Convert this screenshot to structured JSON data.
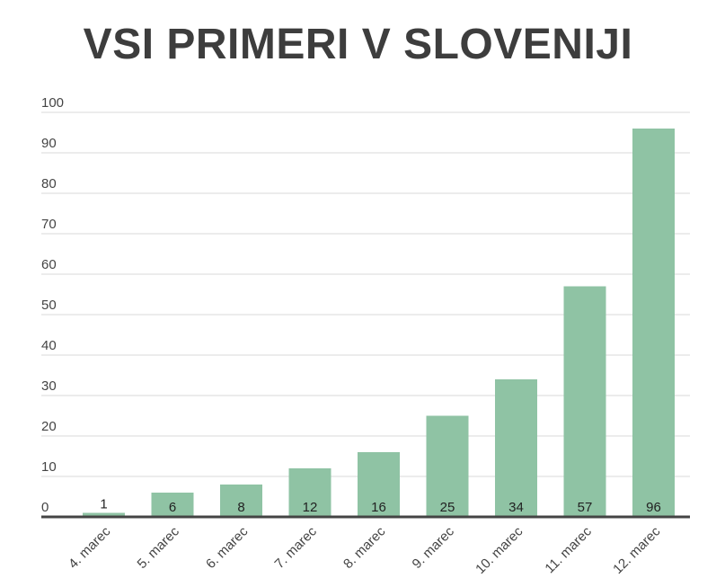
{
  "chart_data": {
    "type": "bar",
    "title": "VSI PRIMERI V SLOVENIJI",
    "categories": [
      "4. marec",
      "5. marec",
      "6. marec",
      "7. marec",
      "8. marec",
      "9. marec",
      "10. marec",
      "11. marec",
      "12. marec"
    ],
    "values": [
      1,
      6,
      8,
      12,
      16,
      25,
      34,
      57,
      96
    ],
    "xlabel": "",
    "ylabel": "",
    "ylim": [
      0,
      100
    ],
    "yticks": [
      0,
      10,
      20,
      30,
      40,
      50,
      60,
      70,
      80,
      90,
      100
    ],
    "grid": true,
    "data_labels": true,
    "colors": {
      "bar": "#8fc3a4",
      "grid": "#d9d9d9",
      "axis": "#444444",
      "title": "#3d3d3d"
    }
  }
}
